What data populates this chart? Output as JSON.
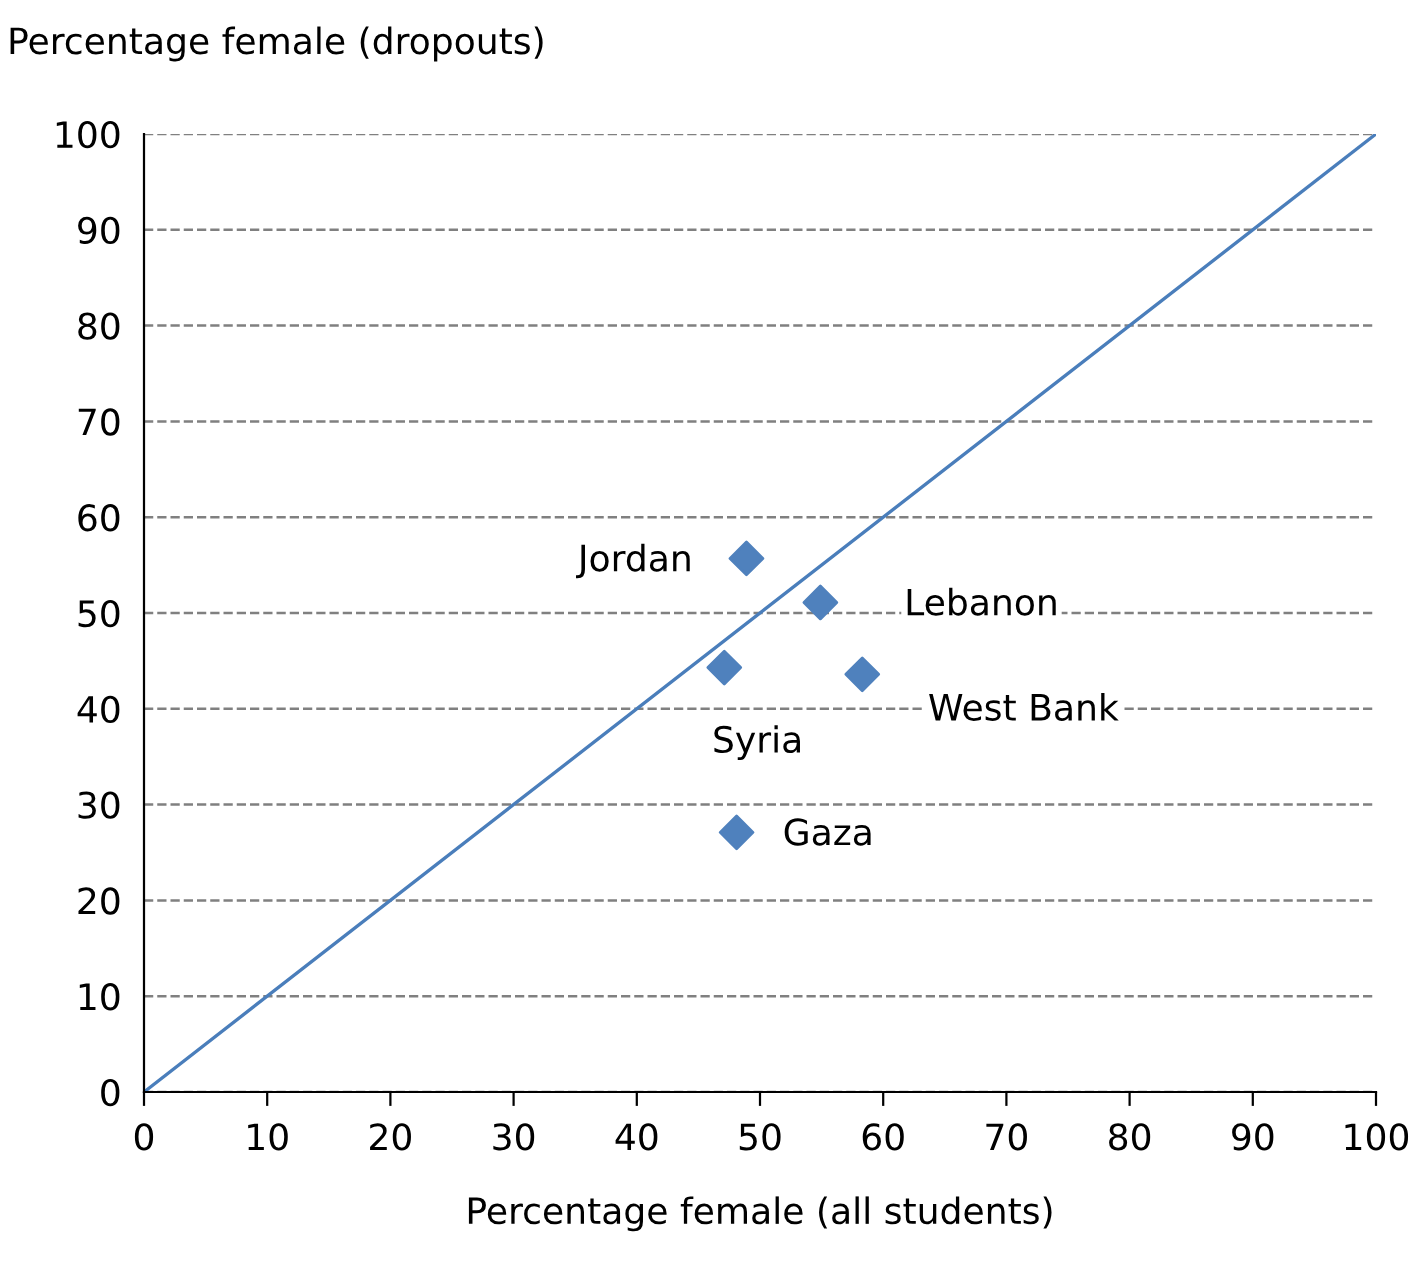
{
  "chart_data": {
    "type": "scatter",
    "xlabel": "Percentage female (all students)",
    "ylabel": "Percentage female (dropouts)",
    "xlim": [
      0,
      100
    ],
    "ylim": [
      0,
      100
    ],
    "xticks": [
      0,
      10,
      20,
      30,
      40,
      50,
      60,
      70,
      80,
      90,
      100
    ],
    "yticks": [
      0,
      10,
      20,
      30,
      40,
      50,
      60,
      70,
      80,
      90,
      100
    ],
    "grid": "y",
    "marker": "diamond",
    "legend": false,
    "series": [
      {
        "type": "scatter",
        "name": "Jordan",
        "color": "#4f81bd",
        "x": [
          48.9
        ],
        "values": [
          55.7
        ]
      },
      {
        "type": "scatter",
        "name": "Lebanon",
        "color": "#4f81bd",
        "x": [
          54.9
        ],
        "values": [
          51.1
        ]
      },
      {
        "type": "scatter",
        "name": "West Bank",
        "color": "#4f81bd",
        "x": [
          58.3
        ],
        "values": [
          43.6
        ]
      },
      {
        "type": "scatter",
        "name": "Syria",
        "color": "#4f81bd",
        "x": [
          47.1
        ],
        "values": [
          44.3
        ]
      },
      {
        "type": "scatter",
        "name": "Gaza",
        "color": "#4f81bd",
        "x": [
          48.1
        ],
        "values": [
          27.1
        ]
      },
      {
        "type": "line",
        "color": "#4a7ebb",
        "x": [
          0,
          100
        ],
        "values": [
          0,
          100
        ],
        "marker": "none"
      }
    ]
  }
}
